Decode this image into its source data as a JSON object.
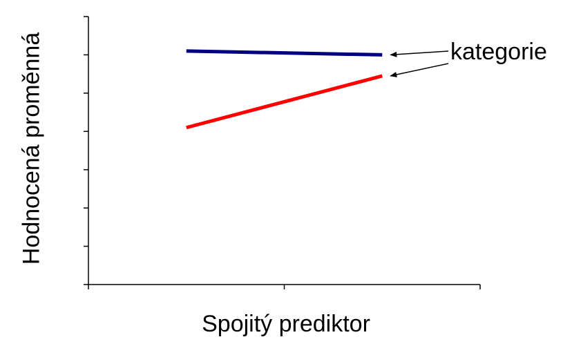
{
  "chart_data": {
    "type": "line",
    "xlabel": "Spojitý prediktor",
    "ylabel": "Hodnocená proměnná",
    "xlim": [
      0,
      2
    ],
    "ylim": [
      0,
      7
    ],
    "x": [
      0.5,
      1.5
    ],
    "series": [
      {
        "values": [
          6.1,
          6.0
        ],
        "color": "#000080"
      },
      {
        "values": [
          4.1,
          5.45
        ],
        "color": "#ff0000"
      }
    ],
    "annotation": "kategorie",
    "grid": false,
    "legend": "none"
  }
}
